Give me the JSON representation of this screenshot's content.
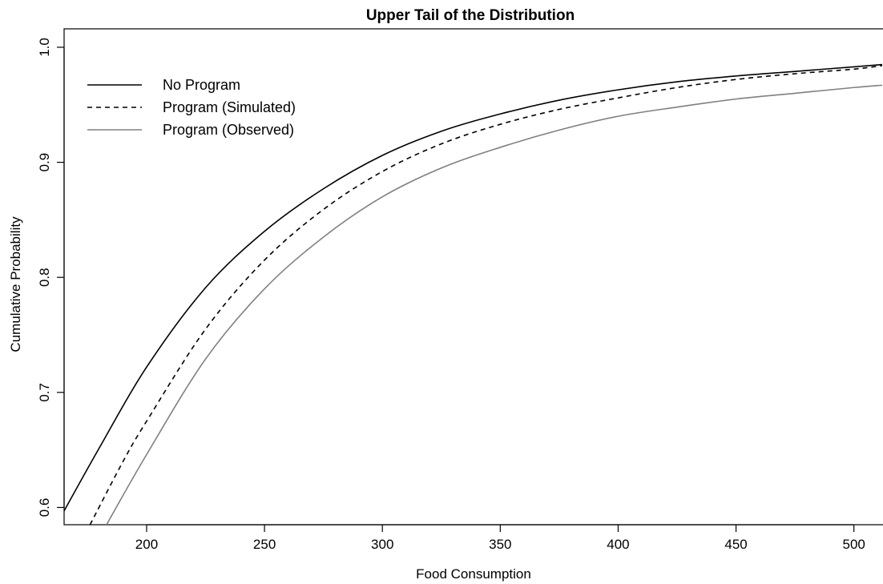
{
  "chart_data": {
    "type": "line",
    "title": "Upper Tail of the Distribution",
    "xlabel": "Food Consumption",
    "ylabel": "Cumulative Probability",
    "xlim": [
      165,
      512
    ],
    "ylim": [
      0.585,
      1.016
    ],
    "xticks": [
      200,
      250,
      300,
      350,
      400,
      450,
      500
    ],
    "yticks": [
      0.6,
      0.7,
      0.8,
      0.9,
      1.0
    ],
    "xtick_labels": [
      "200",
      "250",
      "300",
      "350",
      "400",
      "450",
      "500"
    ],
    "ytick_labels": [
      "0.6",
      "0.7",
      "0.8",
      "0.9",
      "1.0"
    ],
    "grid": false,
    "legend_position": "top-left",
    "series": [
      {
        "name": "No Program",
        "color": "#000000",
        "dash": "solid",
        "x": [
          165,
          180,
          200,
          225,
          250,
          275,
          300,
          325,
          350,
          375,
          400,
          425,
          450,
          475,
          500,
          512
        ],
        "y": [
          0.597,
          0.652,
          0.722,
          0.791,
          0.84,
          0.877,
          0.906,
          0.927,
          0.942,
          0.954,
          0.963,
          0.97,
          0.975,
          0.979,
          0.983,
          0.985
        ]
      },
      {
        "name": "Program (Simulated)",
        "color": "#000000",
        "dash": "dashed",
        "x": [
          176,
          190,
          200,
          225,
          250,
          275,
          300,
          325,
          350,
          375,
          400,
          425,
          450,
          475,
          500,
          512
        ],
        "y": [
          0.585,
          0.64,
          0.675,
          0.755,
          0.815,
          0.859,
          0.892,
          0.916,
          0.933,
          0.946,
          0.956,
          0.965,
          0.972,
          0.977,
          0.981,
          0.984
        ]
      },
      {
        "name": "Program (Observed)",
        "color": "#808080",
        "dash": "solid",
        "x": [
          183,
          200,
          225,
          250,
          275,
          300,
          325,
          350,
          375,
          400,
          425,
          450,
          475,
          500,
          512
        ],
        "y": [
          0.585,
          0.646,
          0.729,
          0.79,
          0.835,
          0.87,
          0.895,
          0.913,
          0.928,
          0.94,
          0.948,
          0.955,
          0.96,
          0.965,
          0.967
        ]
      }
    ]
  }
}
